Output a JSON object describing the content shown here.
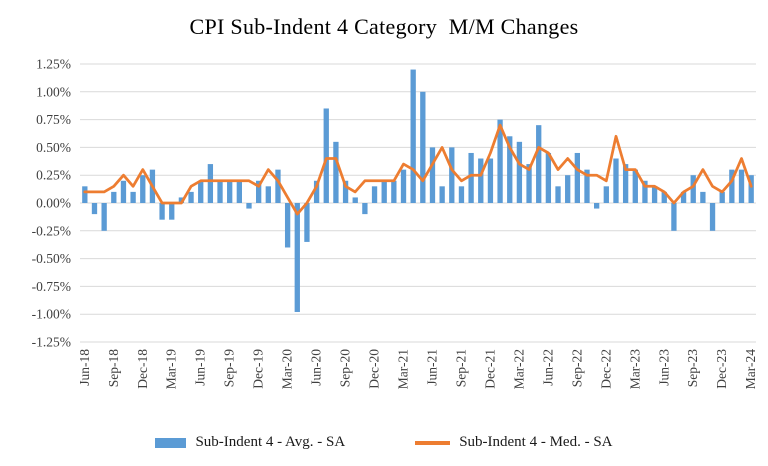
{
  "chart_data": {
    "type": "bar+line",
    "title": "CPI Sub-Indent 4 Category  M/M Changes",
    "x": [
      "Jun-18",
      "Jul-18",
      "Aug-18",
      "Sep-18",
      "Oct-18",
      "Nov-18",
      "Dec-18",
      "Jan-19",
      "Feb-19",
      "Mar-19",
      "Apr-19",
      "May-19",
      "Jun-19",
      "Jul-19",
      "Aug-19",
      "Sep-19",
      "Oct-19",
      "Nov-19",
      "Dec-19",
      "Jan-20",
      "Feb-20",
      "Mar-20",
      "Apr-20",
      "May-20",
      "Jun-20",
      "Jul-20",
      "Aug-20",
      "Sep-20",
      "Oct-20",
      "Nov-20",
      "Dec-20",
      "Jan-21",
      "Feb-21",
      "Mar-21",
      "Apr-21",
      "May-21",
      "Jun-21",
      "Jul-21",
      "Aug-21",
      "Sep-21",
      "Oct-21",
      "Nov-21",
      "Dec-21",
      "Jan-22",
      "Feb-22",
      "Mar-22",
      "Apr-22",
      "May-22",
      "Jun-22",
      "Jul-22",
      "Aug-22",
      "Sep-22",
      "Oct-22",
      "Nov-22",
      "Dec-22",
      "Jan-23",
      "Feb-23",
      "Mar-23",
      "Apr-23",
      "May-23",
      "Jun-23",
      "Jul-23",
      "Aug-23",
      "Sep-23",
      "Oct-23",
      "Nov-23",
      "Dec-23",
      "Jan-24",
      "Feb-24",
      "Mar-24"
    ],
    "x_tick_every": 3,
    "series": [
      {
        "name": "Sub-Indent 4 - Avg. - SA",
        "type": "bar",
        "color": "#5B9BD5",
        "values": [
          0.15,
          -0.1,
          -0.25,
          0.1,
          0.2,
          0.1,
          0.25,
          0.3,
          -0.15,
          -0.15,
          0.05,
          0.1,
          0.2,
          0.35,
          0.2,
          0.2,
          0.2,
          -0.05,
          0.2,
          0.15,
          0.3,
          -0.4,
          -0.98,
          -0.35,
          0.2,
          0.85,
          0.55,
          0.2,
          0.05,
          -0.1,
          0.15,
          0.2,
          0.2,
          0.3,
          1.2,
          1.0,
          0.5,
          0.15,
          0.5,
          0.15,
          0.45,
          0.4,
          0.4,
          0.75,
          0.6,
          0.55,
          0.35,
          0.7,
          0.45,
          0.15,
          0.25,
          0.45,
          0.3,
          -0.05,
          0.15,
          0.4,
          0.35,
          0.3,
          0.2,
          0.15,
          0.1,
          -0.25,
          0.1,
          0.25,
          0.1,
          -0.25,
          0.1,
          0.3,
          0.3,
          0.25
        ]
      },
      {
        "name": "Sub-Indent 4 - Med. - SA",
        "type": "line",
        "color": "#ED7D31",
        "values": [
          0.1,
          0.1,
          0.1,
          0.15,
          0.25,
          0.15,
          0.3,
          0.15,
          0.0,
          0.0,
          0.0,
          0.15,
          0.2,
          0.2,
          0.2,
          0.2,
          0.2,
          0.2,
          0.15,
          0.3,
          0.2,
          0.05,
          -0.1,
          0.0,
          0.15,
          0.4,
          0.4,
          0.15,
          0.1,
          0.2,
          0.2,
          0.2,
          0.2,
          0.35,
          0.3,
          0.2,
          0.35,
          0.5,
          0.3,
          0.2,
          0.25,
          0.25,
          0.45,
          0.7,
          0.5,
          0.35,
          0.3,
          0.5,
          0.45,
          0.3,
          0.4,
          0.3,
          0.25,
          0.25,
          0.2,
          0.6,
          0.3,
          0.3,
          0.15,
          0.15,
          0.1,
          0.0,
          0.1,
          0.15,
          0.3,
          0.15,
          0.1,
          0.2,
          0.4,
          0.15
        ]
      }
    ],
    "ylim": [
      -1.25,
      1.25
    ],
    "y_tick_values": [
      1.25,
      1.0,
      0.75,
      0.5,
      0.25,
      0.0,
      -0.25,
      -0.5,
      -0.75,
      -1.0,
      -1.25
    ],
    "y_tick_labels": [
      "1.25%",
      "1.00%",
      "0.75%",
      "0.50%",
      "0.25%",
      "0.00%",
      "-0.25%",
      "-0.50%",
      "-0.75%",
      "-1.00%",
      "-1.25%"
    ],
    "grid": true,
    "grid_color": "#D9D9D9",
    "tick_color": "#404040",
    "legend_position": "bottom"
  }
}
